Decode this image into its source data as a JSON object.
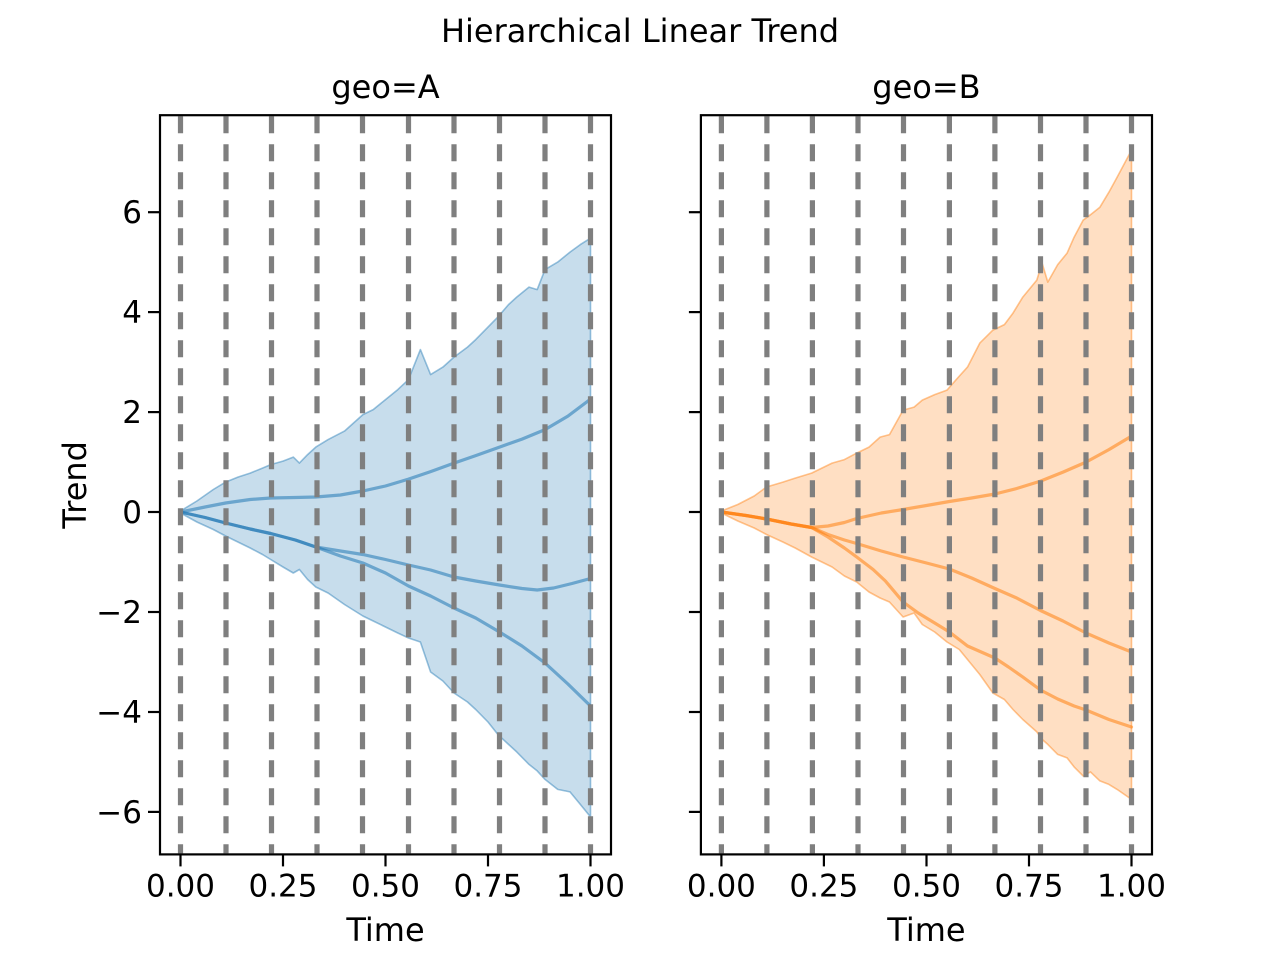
{
  "figure": {
    "suptitle": "Hierarchical Linear Trend",
    "background_color": "#ffffff",
    "text_color": "#000000",
    "changepoint_line_color": "#7f7f7f",
    "spine_color": "#000000"
  },
  "chart_data": [
    {
      "type": "line",
      "title": "geo=A",
      "xlabel": "Time",
      "ylabel": "Trend",
      "color": "#1f77b4",
      "xlim": [
        -0.05,
        1.05
      ],
      "ylim": [
        -6.85,
        7.94
      ],
      "xticks": [
        0,
        0.25,
        0.5,
        0.75,
        1.0
      ],
      "xtick_labels": [
        "0.00",
        "0.25",
        "0.50",
        "0.75",
        "1.00"
      ],
      "yticks": [
        6,
        4,
        2,
        0,
        -2,
        -4,
        -6
      ],
      "ytick_labels": [
        "6",
        "4",
        "2",
        "0",
        "−2",
        "−4",
        "−6"
      ],
      "show_ytick_labels": true,
      "grid": false,
      "legend": "none",
      "changepoints_x": [
        0,
        0.111,
        0.222,
        0.333,
        0.444,
        0.556,
        0.667,
        0.778,
        0.889,
        1.0
      ],
      "band": {
        "x": [
          0,
          0.04,
          0.08,
          0.11,
          0.14,
          0.17,
          0.2,
          0.22,
          0.25,
          0.275,
          0.29,
          0.31,
          0.33,
          0.36,
          0.4,
          0.445,
          0.47,
          0.5,
          0.53,
          0.556,
          0.585,
          0.61,
          0.64,
          0.667,
          0.7,
          0.72,
          0.75,
          0.774,
          0.8,
          0.82,
          0.85,
          0.87,
          0.889,
          0.92,
          0.95,
          0.975,
          1.0
        ],
        "upper": [
          0.02,
          0.22,
          0.45,
          0.6,
          0.7,
          0.78,
          0.88,
          0.95,
          1.02,
          1.1,
          0.98,
          1.15,
          1.3,
          1.45,
          1.62,
          1.95,
          2.05,
          2.25,
          2.45,
          2.65,
          3.25,
          2.75,
          2.9,
          3.1,
          3.3,
          3.45,
          3.7,
          3.9,
          4.15,
          4.3,
          4.5,
          4.45,
          4.85,
          5.0,
          5.2,
          5.35,
          5.48
        ],
        "lower": [
          -0.02,
          -0.2,
          -0.35,
          -0.48,
          -0.6,
          -0.72,
          -0.85,
          -0.95,
          -1.1,
          -1.22,
          -1.15,
          -1.35,
          -1.5,
          -1.62,
          -1.85,
          -2.08,
          -2.18,
          -2.3,
          -2.42,
          -2.52,
          -2.6,
          -3.2,
          -3.38,
          -3.62,
          -3.8,
          -3.95,
          -4.2,
          -4.45,
          -4.65,
          -4.8,
          -5.05,
          -5.18,
          -5.35,
          -5.55,
          -5.6,
          -5.85,
          -6.1
        ]
      },
      "series": [
        {
          "name": "trend-line-upper",
          "x": [
            0,
            0.06,
            0.11,
            0.17,
            0.22,
            0.28,
            0.33,
            0.39,
            0.445,
            0.5,
            0.556,
            0.61,
            0.667,
            0.72,
            0.778,
            0.833,
            0.889,
            0.945,
            1.0
          ],
          "y": [
            0,
            0.1,
            0.18,
            0.25,
            0.28,
            0.29,
            0.3,
            0.34,
            0.42,
            0.52,
            0.66,
            0.81,
            0.98,
            1.13,
            1.3,
            1.46,
            1.65,
            1.92,
            2.26
          ]
        },
        {
          "name": "trend-line-middle",
          "x": [
            0,
            0.06,
            0.11,
            0.17,
            0.22,
            0.28,
            0.33,
            0.39,
            0.445,
            0.5,
            0.556,
            0.61,
            0.667,
            0.72,
            0.778,
            0.833,
            0.87,
            0.91,
            0.955,
            1.0
          ],
          "y": [
            0,
            -0.11,
            -0.22,
            -0.34,
            -0.43,
            -0.56,
            -0.7,
            -0.78,
            -0.85,
            -0.95,
            -1.06,
            -1.16,
            -1.3,
            -1.38,
            -1.46,
            -1.53,
            -1.56,
            -1.52,
            -1.43,
            -1.33
          ]
        },
        {
          "name": "trend-line-lower",
          "x": [
            0,
            0.06,
            0.11,
            0.17,
            0.22,
            0.28,
            0.33,
            0.39,
            0.445,
            0.5,
            0.556,
            0.61,
            0.667,
            0.72,
            0.778,
            0.833,
            0.889,
            0.945,
            1.0
          ],
          "y": [
            0,
            -0.11,
            -0.22,
            -0.34,
            -0.43,
            -0.56,
            -0.7,
            -0.88,
            -1.02,
            -1.22,
            -1.48,
            -1.68,
            -1.92,
            -2.12,
            -2.4,
            -2.68,
            -3.02,
            -3.44,
            -3.88
          ]
        }
      ]
    },
    {
      "type": "line",
      "title": "geo=B",
      "xlabel": "Time",
      "ylabel": "",
      "color": "#ff7f0e",
      "xlim": [
        -0.05,
        1.05
      ],
      "ylim": [
        -6.85,
        7.94
      ],
      "xticks": [
        0,
        0.25,
        0.5,
        0.75,
        1.0
      ],
      "xtick_labels": [
        "0.00",
        "0.25",
        "0.50",
        "0.75",
        "1.00"
      ],
      "yticks": [
        6,
        4,
        2,
        0,
        -2,
        -4,
        -6
      ],
      "ytick_labels": [],
      "show_ytick_labels": false,
      "grid": false,
      "legend": "none",
      "changepoints_x": [
        0,
        0.111,
        0.222,
        0.333,
        0.444,
        0.556,
        0.667,
        0.778,
        0.889,
        1.0
      ],
      "band": {
        "x": [
          0,
          0.04,
          0.08,
          0.11,
          0.15,
          0.18,
          0.22,
          0.27,
          0.3,
          0.33,
          0.36,
          0.387,
          0.41,
          0.443,
          0.47,
          0.49,
          0.52,
          0.55,
          0.58,
          0.6,
          0.63,
          0.662,
          0.69,
          0.711,
          0.735,
          0.769,
          0.782,
          0.796,
          0.82,
          0.843,
          0.86,
          0.882,
          0.9,
          0.923,
          0.945,
          0.965,
          1.0
        ],
        "upper": [
          0.02,
          0.15,
          0.32,
          0.5,
          0.6,
          0.68,
          0.78,
          0.98,
          1.05,
          1.18,
          1.3,
          1.5,
          1.55,
          2.04,
          2.1,
          2.24,
          2.35,
          2.44,
          2.72,
          2.9,
          3.38,
          3.64,
          3.75,
          3.98,
          4.3,
          4.64,
          4.98,
          4.6,
          4.95,
          5.18,
          5.5,
          5.84,
          5.95,
          6.1,
          6.4,
          6.7,
          7.24
        ],
        "lower": [
          -0.02,
          -0.18,
          -0.32,
          -0.45,
          -0.6,
          -0.72,
          -0.9,
          -1.1,
          -1.28,
          -1.4,
          -1.6,
          -1.72,
          -1.8,
          -2.1,
          -2.02,
          -2.25,
          -2.4,
          -2.6,
          -2.75,
          -2.95,
          -3.25,
          -3.62,
          -3.75,
          -3.95,
          -4.15,
          -4.4,
          -4.55,
          -4.65,
          -4.85,
          -4.92,
          -5.1,
          -5.28,
          -5.2,
          -5.38,
          -5.45,
          -5.55,
          -5.75
        ]
      },
      "series": [
        {
          "name": "trend-line-upper",
          "x": [
            0,
            0.06,
            0.11,
            0.17,
            0.22,
            0.26,
            0.3,
            0.33,
            0.39,
            0.443,
            0.5,
            0.556,
            0.61,
            0.667,
            0.72,
            0.778,
            0.833,
            0.889,
            0.945,
            1.0
          ],
          "y": [
            0,
            -0.07,
            -0.14,
            -0.24,
            -0.31,
            -0.28,
            -0.21,
            -0.13,
            -0.02,
            0.05,
            0.13,
            0.21,
            0.28,
            0.36,
            0.47,
            0.62,
            0.8,
            1.0,
            1.25,
            1.52
          ]
        },
        {
          "name": "trend-line-middle",
          "x": [
            0,
            0.06,
            0.11,
            0.17,
            0.22,
            0.26,
            0.3,
            0.33,
            0.39,
            0.443,
            0.5,
            0.556,
            0.61,
            0.667,
            0.72,
            0.778,
            0.833,
            0.889,
            0.945,
            1.0
          ],
          "y": [
            0,
            -0.07,
            -0.14,
            -0.24,
            -0.31,
            -0.45,
            -0.56,
            -0.63,
            -0.78,
            -0.9,
            -1.02,
            -1.14,
            -1.32,
            -1.53,
            -1.72,
            -1.97,
            -2.18,
            -2.42,
            -2.62,
            -2.8
          ]
        },
        {
          "name": "trend-line-lower",
          "x": [
            0,
            0.06,
            0.11,
            0.17,
            0.22,
            0.26,
            0.3,
            0.33,
            0.37,
            0.4,
            0.443,
            0.48,
            0.52,
            0.556,
            0.6,
            0.667,
            0.7,
            0.735,
            0.778,
            0.82,
            0.86,
            0.889,
            0.945,
            1.0
          ],
          "y": [
            0,
            -0.07,
            -0.14,
            -0.24,
            -0.31,
            -0.5,
            -0.72,
            -0.9,
            -1.15,
            -1.38,
            -1.8,
            -2.02,
            -2.22,
            -2.4,
            -2.68,
            -2.92,
            -3.1,
            -3.3,
            -3.56,
            -3.74,
            -3.88,
            -3.96,
            -4.15,
            -4.3
          ]
        }
      ]
    }
  ]
}
